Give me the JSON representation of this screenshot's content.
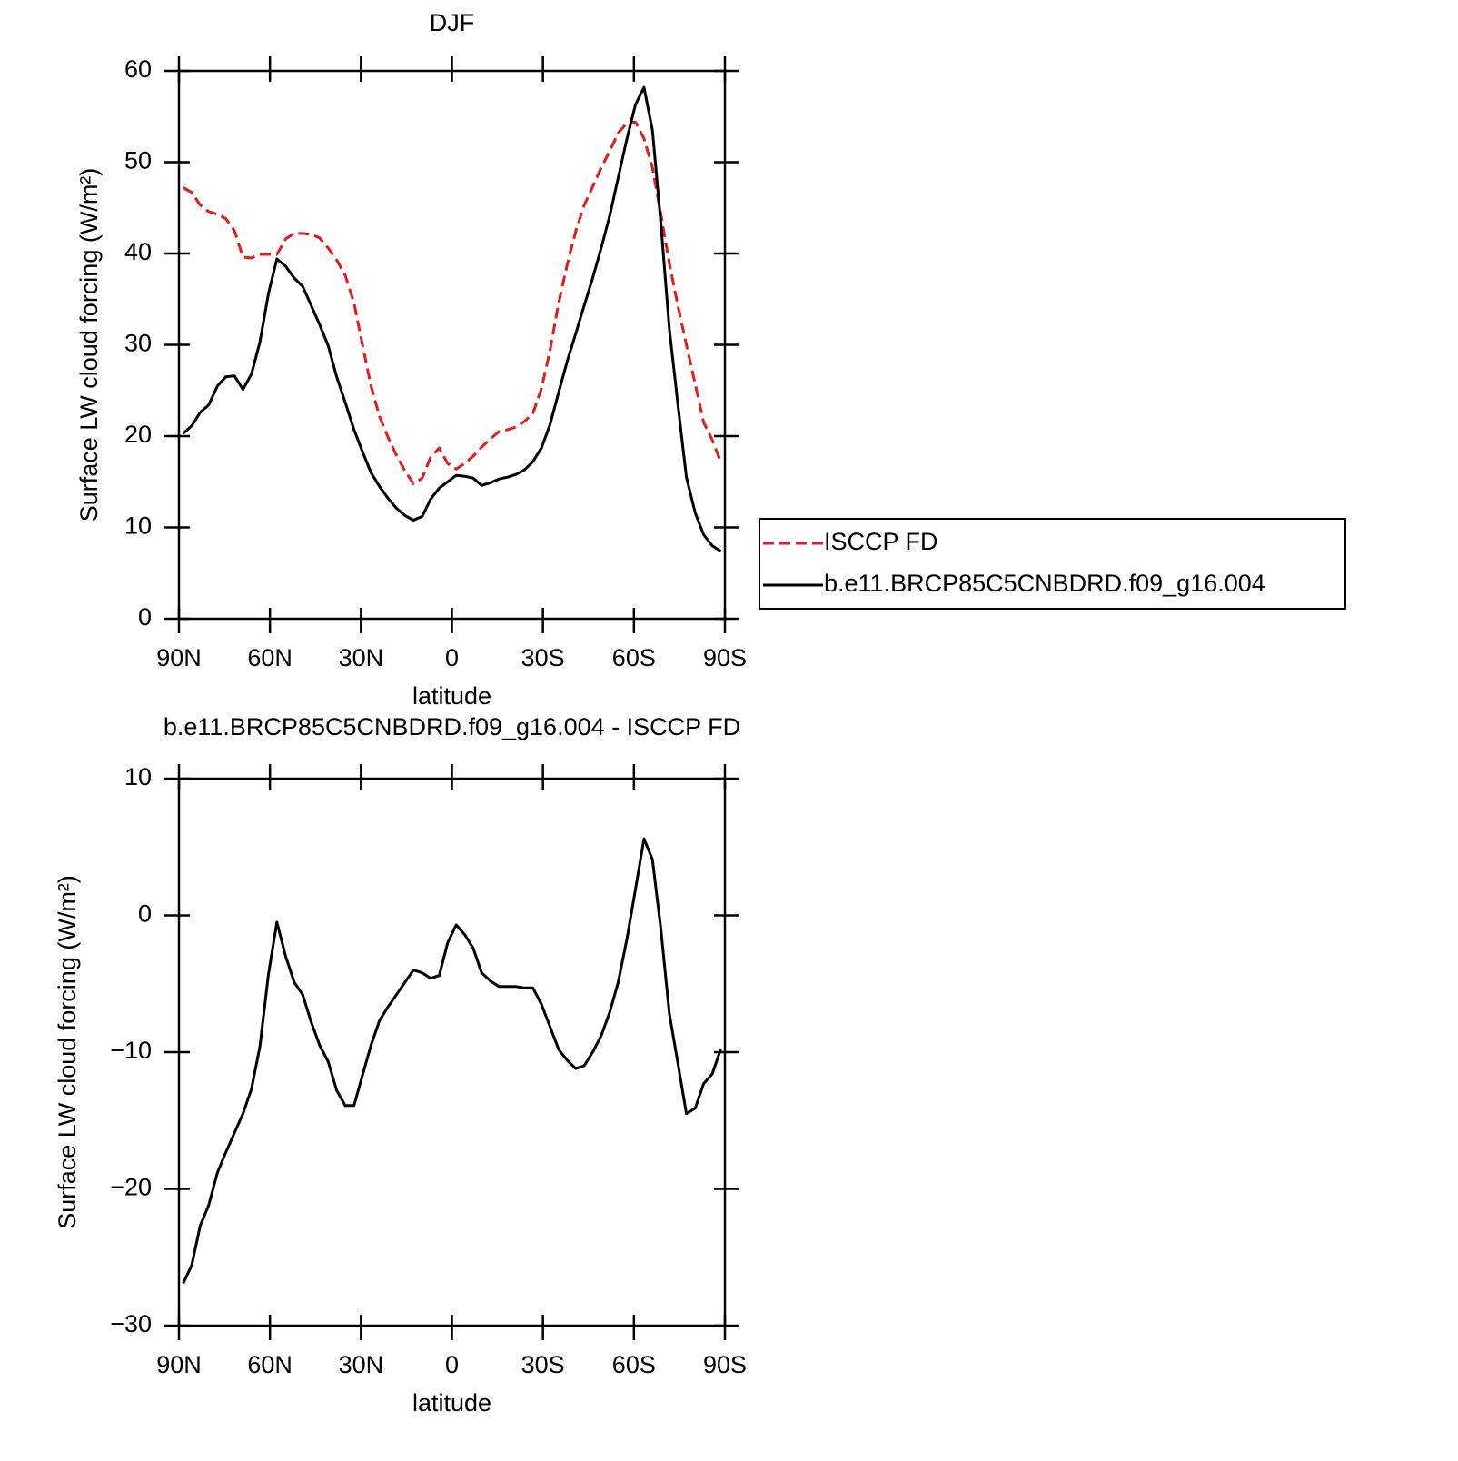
{
  "chart_data": [
    {
      "type": "line",
      "title": "DJF",
      "xlabel": "latitude",
      "ylabel": "Surface LW cloud forcing (W/m²)",
      "x": [
        88.6,
        85.8,
        83.0,
        80.2,
        77.3,
        74.5,
        71.7,
        68.9,
        66.1,
        63.3,
        60.5,
        57.7,
        54.8,
        52.0,
        49.2,
        46.4,
        43.6,
        40.8,
        38.0,
        35.2,
        32.3,
        29.5,
        26.7,
        23.9,
        21.1,
        18.3,
        15.5,
        12.7,
        9.8,
        7.0,
        4.2,
        1.4,
        -1.4,
        -4.2,
        -7.0,
        -9.8,
        -12.7,
        -15.5,
        -18.3,
        -21.1,
        -23.9,
        -26.7,
        -29.5,
        -32.3,
        -35.2,
        -38.0,
        -40.8,
        -43.6,
        -46.4,
        -49.2,
        -52.0,
        -54.8,
        -57.7,
        -60.5,
        -63.3,
        -66.1,
        -68.9,
        -71.7,
        -74.5,
        -77.3,
        -80.2,
        -83.0,
        -85.8,
        -88.6
      ],
      "series": [
        {
          "name": "ISCCP FD",
          "color": "#e41a1c",
          "dashed": true,
          "values": [
            47.2,
            46.7,
            45.3,
            44.6,
            44.3,
            43.8,
            42.5,
            39.6,
            39.5,
            39.9,
            39.9,
            39.9,
            41.6,
            42.2,
            42.2,
            42.1,
            41.7,
            40.6,
            39.3,
            37.6,
            34.6,
            30.0,
            25.5,
            22.2,
            19.9,
            17.9,
            16.2,
            14.8,
            15.4,
            17.7,
            18.7,
            17.0,
            16.4,
            17.0,
            17.8,
            18.8,
            19.7,
            20.5,
            20.7,
            21.0,
            21.6,
            22.5,
            25.2,
            29.3,
            34.6,
            38.8,
            42.4,
            45.3,
            47.3,
            49.4,
            51.2,
            53.2,
            54.3,
            54.4,
            52.6,
            49.4,
            44.3,
            38.9,
            34.3,
            30.0,
            25.7,
            21.5,
            19.6,
            17.2
          ]
        },
        {
          "name": "b.e11.BRCP85C5CNBDRD.f09_g16.004",
          "color": "#000000",
          "dashed": false,
          "values": [
            20.3,
            21.1,
            22.6,
            23.4,
            25.5,
            26.5,
            26.6,
            25.1,
            26.8,
            30.3,
            35.6,
            39.4,
            38.6,
            37.3,
            36.4,
            34.3,
            32.2,
            29.9,
            26.5,
            23.7,
            20.7,
            18.3,
            16.0,
            14.5,
            13.2,
            12.1,
            11.3,
            10.8,
            11.2,
            13.1,
            14.3,
            15.0,
            15.7,
            15.6,
            15.4,
            14.6,
            14.9,
            15.3,
            15.5,
            15.8,
            16.3,
            17.2,
            18.7,
            21.2,
            24.8,
            28.2,
            31.2,
            34.3,
            37.3,
            40.6,
            44.1,
            48.3,
            52.6,
            56.3,
            58.2,
            53.5,
            43.3,
            31.7,
            23.5,
            15.5,
            11.6,
            9.2,
            8.0,
            7.4
          ]
        }
      ],
      "xlim": [
        90,
        -90
      ],
      "xticks": [
        {
          "value": 90,
          "label": "90N"
        },
        {
          "value": 60,
          "label": "60N"
        },
        {
          "value": 30,
          "label": "30N"
        },
        0,
        {
          "value": -30,
          "label": "30S"
        },
        {
          "value": -60,
          "label": "60S"
        },
        {
          "value": -90,
          "label": "90S"
        }
      ],
      "ylim": [
        0,
        60
      ],
      "yticks": [
        0,
        10,
        20,
        30,
        40,
        50,
        60
      ],
      "legend": "outside-right"
    },
    {
      "type": "line",
      "title": "b.e11.BRCP85C5CNBDRD.f09_g16.004 - ISCCP FD",
      "xlabel": "latitude",
      "ylabel": "Surface LW cloud forcing (W/m²)",
      "x": [
        88.6,
        85.8,
        83.0,
        80.2,
        77.3,
        74.5,
        71.7,
        68.9,
        66.1,
        63.3,
        60.5,
        57.7,
        54.8,
        52.0,
        49.2,
        46.4,
        43.6,
        40.8,
        38.0,
        35.2,
        32.3,
        29.5,
        26.7,
        23.9,
        21.1,
        18.3,
        15.5,
        12.7,
        9.8,
        7.0,
        4.2,
        1.4,
        -1.4,
        -4.2,
        -7.0,
        -9.8,
        -12.7,
        -15.5,
        -18.3,
        -21.1,
        -23.9,
        -26.7,
        -29.5,
        -32.3,
        -35.2,
        -38.0,
        -40.8,
        -43.6,
        -46.4,
        -49.2,
        -52.0,
        -54.8,
        -57.7,
        -60.5,
        -63.3,
        -66.1,
        -68.9,
        -71.7,
        -74.5,
        -77.3,
        -80.2,
        -83.0,
        -85.8,
        -88.6
      ],
      "series": [
        {
          "color": "#000000",
          "dashed": false,
          "values": [
            -26.9,
            -25.6,
            -22.7,
            -21.2,
            -18.8,
            -17.3,
            -15.9,
            -14.5,
            -12.7,
            -9.6,
            -4.3,
            -0.5,
            -3.0,
            -4.9,
            -5.8,
            -7.8,
            -9.5,
            -10.7,
            -12.8,
            -13.9,
            -13.9,
            -11.7,
            -9.5,
            -7.7,
            -6.7,
            -5.8,
            -4.9,
            -4.0,
            -4.2,
            -4.6,
            -4.4,
            -2.0,
            -0.7,
            -1.4,
            -2.4,
            -4.2,
            -4.8,
            -5.2,
            -5.2,
            -5.2,
            -5.3,
            -5.3,
            -6.5,
            -8.1,
            -9.8,
            -10.6,
            -11.2,
            -11.0,
            -10.0,
            -8.8,
            -7.1,
            -4.9,
            -1.7,
            1.9,
            5.6,
            4.1,
            -1.0,
            -7.2,
            -10.8,
            -14.5,
            -14.1,
            -12.3,
            -11.6,
            -9.8
          ]
        }
      ],
      "xlim": [
        90,
        -90
      ],
      "xticks": [
        {
          "value": 90,
          "label": "90N"
        },
        {
          "value": 60,
          "label": "60N"
        },
        {
          "value": 30,
          "label": "30N"
        },
        0,
        {
          "value": -30,
          "label": "30S"
        },
        {
          "value": -60,
          "label": "60S"
        },
        {
          "value": -90,
          "label": "90S"
        }
      ],
      "ylim": [
        -30,
        10
      ],
      "yticks": [
        {
          "value": -30,
          "label": "−30"
        },
        {
          "value": -20,
          "label": "−20"
        },
        {
          "value": -10,
          "label": "−10"
        },
        0,
        10
      ]
    }
  ]
}
